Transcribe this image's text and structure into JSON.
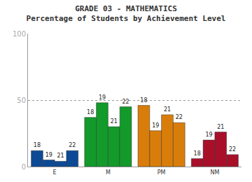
{
  "chart_data": {
    "type": "bar",
    "title": "GRADE 03 - MATHEMATICS",
    "subtitle": "Percentage of Students by Achievement Level",
    "categories": [
      "E",
      "M",
      "PM",
      "NM"
    ],
    "series": [
      {
        "name": "18",
        "colors": [
          "#0d4a96",
          "#129a2a",
          "#d97d0a",
          "#a8102a"
        ],
        "values": [
          12,
          37,
          46,
          6
        ]
      },
      {
        "name": "19",
        "colors": [
          "#0d4a96",
          "#129a2a",
          "#d97d0a",
          "#a8102a"
        ],
        "values": [
          5,
          48,
          27,
          20
        ]
      },
      {
        "name": "21",
        "colors": [
          "#0d4a96",
          "#129a2a",
          "#d97d0a",
          "#a8102a"
        ],
        "values": [
          4,
          30,
          39,
          26
        ]
      },
      {
        "name": "22",
        "colors": [
          "#0d4a96",
          "#129a2a",
          "#d97d0a",
          "#a8102a"
        ],
        "values": [
          12,
          45,
          33,
          9
        ]
      }
    ],
    "ylim": [
      0,
      100
    ],
    "yticks": [
      0,
      50,
      100
    ],
    "grid": true
  }
}
